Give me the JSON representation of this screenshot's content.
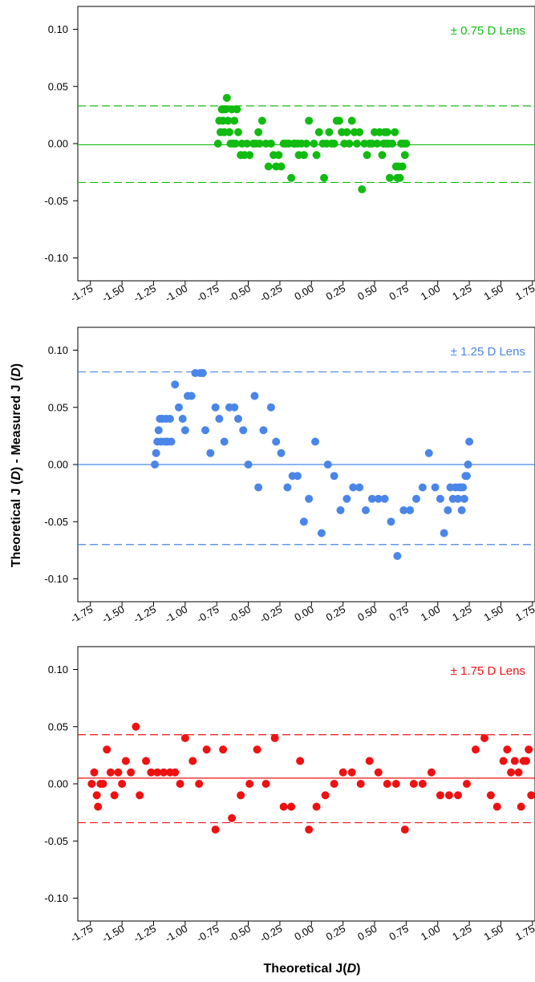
{
  "ylabel": {
    "prefix": "Theoretical J (",
    "mid": ") - Measured J (",
    "suffix": ")",
    "unit": "D"
  },
  "xlabel": {
    "prefix": "Theoretical J(",
    "suffix": ")",
    "unit": "D"
  },
  "chart_data": [
    {
      "type": "scatter",
      "legend": "± 0.75 D Lens",
      "color": "#11bb11",
      "xlim": [
        -1.85,
        1.77
      ],
      "ylim": [
        -0.12,
        0.12
      ],
      "xticks": [
        "-1.75",
        "-1.50",
        "-1.25",
        "-1.00",
        "-0.75",
        "-0.50",
        "-0.25",
        "0.00",
        "0.25",
        "0.50",
        "0.75",
        "1.00",
        "1.25",
        "1.50",
        "1.75"
      ],
      "yticks": [
        "0.10",
        "0.05",
        "0.00",
        "-0.05",
        "-0.10"
      ],
      "mean_line": -0.001,
      "loa_upper": 0.033,
      "loa_lower": -0.034,
      "x": [
        -0.74,
        -0.73,
        -0.72,
        -0.71,
        -0.7,
        -0.7,
        -0.69,
        -0.68,
        -0.67,
        -0.66,
        -0.65,
        -0.64,
        -0.63,
        -0.62,
        -0.61,
        -0.6,
        -0.59,
        -0.58,
        -0.56,
        -0.55,
        -0.53,
        -0.51,
        -0.49,
        -0.46,
        -0.44,
        -0.42,
        -0.41,
        -0.39,
        -0.36,
        -0.34,
        -0.32,
        -0.3,
        -0.28,
        -0.26,
        -0.24,
        -0.22,
        -0.2,
        -0.18,
        -0.16,
        -0.14,
        -0.13,
        -0.11,
        -0.1,
        -0.08,
        -0.06,
        -0.04,
        -0.02,
        0.02,
        0.04,
        0.06,
        0.09,
        0.1,
        0.12,
        0.14,
        0.16,
        0.18,
        0.2,
        0.22,
        0.24,
        0.26,
        0.28,
        0.3,
        0.32,
        0.34,
        0.36,
        0.38,
        0.4,
        0.42,
        0.44,
        0.46,
        0.48,
        0.5,
        0.52,
        0.54,
        0.56,
        0.57,
        0.58,
        0.59,
        0.6,
        0.61,
        0.62,
        0.64,
        0.66,
        0.67,
        0.68,
        0.69,
        0.7,
        0.71,
        0.72,
        0.73,
        0.74,
        0.75
      ],
      "y": [
        0,
        0.02,
        0.01,
        0.03,
        0.02,
        0.03,
        0.01,
        0.03,
        0.04,
        0.02,
        0.01,
        0,
        0.03,
        0,
        0.02,
        0,
        0.03,
        0.01,
        -0.01,
        0,
        -0.01,
        0,
        -0.01,
        0,
        0,
        0.01,
        0,
        0.02,
        0,
        -0.02,
        0,
        -0.01,
        -0.02,
        -0.01,
        -0.02,
        0,
        0,
        0,
        -0.03,
        0,
        0,
        0,
        -0.01,
        0,
        -0.01,
        0,
        0.02,
        0,
        -0.01,
        0.01,
        0,
        -0.03,
        0,
        0.01,
        0,
        0,
        0.02,
        0.02,
        0.01,
        0,
        0.01,
        0,
        0.02,
        0.01,
        0,
        0.01,
        -0.04,
        0,
        -0.01,
        0,
        0,
        0.01,
        0,
        0.01,
        -0.01,
        0,
        0.01,
        0,
        0.01,
        0,
        -0.03,
        0,
        0.01,
        -0.02,
        -0.03,
        -0.02,
        -0.03,
        0,
        -0.02,
        0,
        -0.01,
        0
      ]
    },
    {
      "type": "scatter",
      "legend": "± 1.25 D Lens",
      "color": "#4a86e8",
      "xlim": [
        -1.85,
        1.77
      ],
      "ylim": [
        -0.12,
        0.12
      ],
      "xticks": [
        "-1.75",
        "-1.50",
        "-1.25",
        "-1.00",
        "-0.75",
        "-0.50",
        "-0.25",
        "0.00",
        "0.25",
        "0.50",
        "0.75",
        "1.00",
        "1.25",
        "1.50",
        "1.75"
      ],
      "yticks": [
        "0.10",
        "0.05",
        "0.00",
        "-0.05",
        "-0.10"
      ],
      "mean_line": 0.0,
      "loa_upper": 0.081,
      "loa_lower": -0.07,
      "x": [
        -1.24,
        -1.23,
        -1.22,
        -1.21,
        -1.2,
        -1.19,
        -1.18,
        -1.16,
        -1.15,
        -1.14,
        -1.12,
        -1.11,
        -1.08,
        -1.05,
        -1.02,
        -1.0,
        -0.98,
        -0.95,
        -0.92,
        -0.88,
        -0.86,
        -0.84,
        -0.8,
        -0.76,
        -0.73,
        -0.69,
        -0.65,
        -0.61,
        -0.58,
        -0.54,
        -0.5,
        -0.45,
        -0.42,
        -0.38,
        -0.32,
        -0.28,
        -0.24,
        -0.19,
        -0.15,
        -0.11,
        -0.06,
        -0.02,
        0.03,
        0.08,
        0.13,
        0.18,
        0.23,
        0.28,
        0.33,
        0.38,
        0.43,
        0.48,
        0.53,
        0.58,
        0.63,
        0.68,
        0.73,
        0.78,
        0.83,
        0.88,
        0.93,
        0.98,
        1.02,
        1.05,
        1.08,
        1.1,
        1.12,
        1.14,
        1.16,
        1.17,
        1.18,
        1.19,
        1.2,
        1.21,
        1.22,
        1.23,
        1.24,
        1.25
      ],
      "y": [
        0,
        0.01,
        0.02,
        0.03,
        0.04,
        0.02,
        0.04,
        0.02,
        0.04,
        0.02,
        0.04,
        0.02,
        0.07,
        0.05,
        0.04,
        0.03,
        0.06,
        0.06,
        0.08,
        0.08,
        0.08,
        0.03,
        0.01,
        0.05,
        0.04,
        0.02,
        0.05,
        0.05,
        0.04,
        0.03,
        0,
        0.06,
        -0.02,
        0.03,
        0.05,
        0.02,
        0.01,
        -0.02,
        -0.01,
        -0.01,
        -0.05,
        -0.03,
        0.02,
        -0.06,
        0,
        -0.01,
        -0.04,
        -0.03,
        -0.02,
        -0.02,
        -0.04,
        -0.03,
        -0.03,
        -0.03,
        -0.05,
        -0.08,
        -0.04,
        -0.04,
        -0.03,
        -0.02,
        0.01,
        -0.02,
        -0.03,
        -0.06,
        -0.04,
        -0.02,
        -0.03,
        -0.02,
        -0.03,
        -0.02,
        -0.02,
        -0.04,
        -0.02,
        -0.03,
        -0.01,
        -0.01,
        0,
        0.02
      ]
    },
    {
      "type": "scatter",
      "legend": "± 1.75 D Lens",
      "color": "#ee1111",
      "xlim": [
        -1.85,
        1.77
      ],
      "ylim": [
        -0.12,
        0.12
      ],
      "xticks": [
        "-1.75",
        "-1.50",
        "-1.25",
        "-1.00",
        "-0.75",
        "-0.50",
        "-0.25",
        "0.00",
        "0.25",
        "0.50",
        "0.75",
        "1.00",
        "1.25",
        "1.50",
        "1.75"
      ],
      "yticks": [
        "0.10",
        "0.05",
        "0.00",
        "-0.05",
        "-0.10"
      ],
      "mean_line": 0.005,
      "loa_upper": 0.043,
      "loa_lower": -0.034,
      "x": [
        -1.74,
        -1.72,
        -1.7,
        -1.69,
        -1.67,
        -1.65,
        -1.62,
        -1.59,
        -1.56,
        -1.53,
        -1.5,
        -1.47,
        -1.43,
        -1.39,
        -1.36,
        -1.31,
        -1.27,
        -1.22,
        -1.17,
        -1.12,
        -1.08,
        -1.04,
        -1.0,
        -0.94,
        -0.89,
        -0.83,
        -0.76,
        -0.7,
        -0.63,
        -0.56,
        -0.49,
        -0.43,
        -0.36,
        -0.29,
        -0.22,
        -0.16,
        -0.09,
        -0.02,
        0.04,
        0.11,
        0.18,
        0.25,
        0.32,
        0.39,
        0.46,
        0.53,
        0.6,
        0.67,
        0.74,
        0.81,
        0.88,
        0.95,
        1.02,
        1.09,
        1.16,
        1.23,
        1.3,
        1.37,
        1.42,
        1.47,
        1.52,
        1.55,
        1.58,
        1.61,
        1.64,
        1.66,
        1.68,
        1.7,
        1.72,
        1.74
      ],
      "y": [
        0,
        0.01,
        -0.01,
        -0.02,
        0,
        0,
        0.03,
        0.01,
        -0.01,
        0.01,
        0,
        0.02,
        0.01,
        0.05,
        -0.01,
        0.02,
        0.01,
        0.01,
        0.01,
        0.01,
        0.01,
        0,
        0.04,
        0.02,
        0,
        0.03,
        -0.04,
        0.03,
        -0.03,
        -0.01,
        0,
        0.03,
        0,
        0.04,
        -0.02,
        -0.02,
        0.02,
        -0.04,
        -0.02,
        -0.01,
        0,
        0.01,
        0.01,
        0,
        0.02,
        0.01,
        0,
        0,
        -0.04,
        0,
        0,
        0.01,
        -0.01,
        -0.01,
        -0.01,
        0,
        0.03,
        0.04,
        -0.01,
        -0.02,
        0.02,
        0.03,
        0.01,
        0.02,
        0.01,
        -0.02,
        0.02,
        0.02,
        0.03,
        -0.01
      ]
    }
  ]
}
